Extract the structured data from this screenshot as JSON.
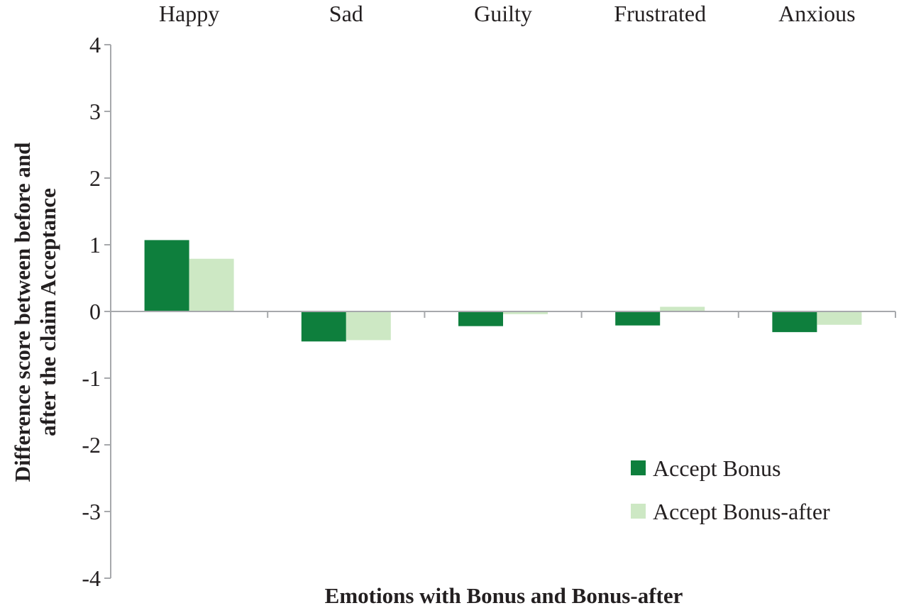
{
  "chart_data": {
    "type": "bar",
    "title": "",
    "xlabel": "Emotions with Bonus and Bonus-after",
    "ylabel_lines": [
      "Difference score between before and",
      "after the claim Acceptance"
    ],
    "categories": [
      "Happy",
      "Sad",
      "Guilty",
      "Frustrated",
      "Anxious"
    ],
    "category_label_position": "top",
    "series": [
      {
        "name": "Accept Bonus",
        "color": "#0e7f3d",
        "values": [
          1.07,
          -0.45,
          -0.22,
          -0.21,
          -0.31
        ]
      },
      {
        "name": "Accept Bonus-after",
        "color": "#cde8c4",
        "values": [
          0.79,
          -0.43,
          -0.04,
          0.07,
          -0.2
        ]
      }
    ],
    "ylim": [
      -4,
      4
    ],
    "yticks": [
      4,
      3,
      2,
      1,
      0,
      -1,
      -2,
      -3,
      -4
    ],
    "ytick_labels": [
      "4",
      "3",
      "2",
      "1",
      "0",
      "-1",
      "-2",
      "-3",
      "-4"
    ],
    "grid": false,
    "legend_position": "bottom-right",
    "axis_color": "#a7a9ac",
    "text_color": "#231f20"
  }
}
